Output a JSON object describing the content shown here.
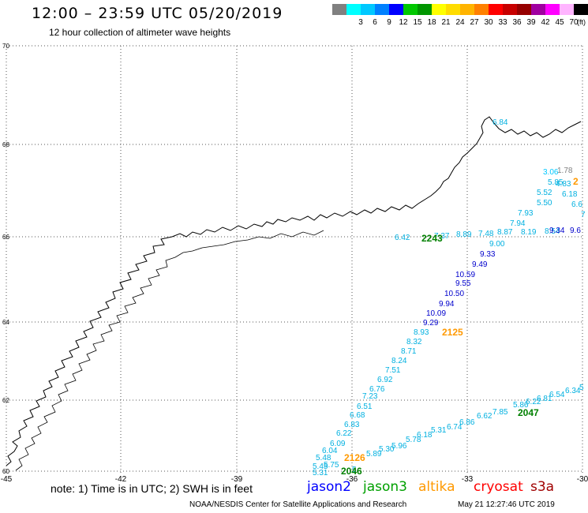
{
  "header": {
    "title": "12:00 – 23:59 UTC 05/20/2019",
    "subtitle": "12 hour collection of altimeter wave heights"
  },
  "legend": {
    "unit": "(ft)",
    "bins": [
      {
        "label": "",
        "color": "#808080"
      },
      {
        "label": "3",
        "color": "#00ffff"
      },
      {
        "label": "6",
        "color": "#00c8ff"
      },
      {
        "label": "9",
        "color": "#0080ff"
      },
      {
        "label": "12",
        "color": "#0000ff"
      },
      {
        "label": "15",
        "color": "#00c800"
      },
      {
        "label": "18",
        "color": "#009600"
      },
      {
        "label": "21",
        "color": "#ffff00"
      },
      {
        "label": "24",
        "color": "#ffdc00"
      },
      {
        "label": "27",
        "color": "#ffb400"
      },
      {
        "label": "30",
        "color": "#ff8000"
      },
      {
        "label": "33",
        "color": "#ff0000"
      },
      {
        "label": "36",
        "color": "#c80000"
      },
      {
        "label": "39",
        "color": "#960000"
      },
      {
        "label": "42",
        "color": "#a000a0"
      },
      {
        "label": "45",
        "color": "#ff00ff"
      },
      {
        "label": "70",
        "color": "#ffb4ff"
      },
      {
        "label": "",
        "color": "#000000"
      }
    ]
  },
  "map": {
    "lon_labels": [
      "-45",
      "-42",
      "-39",
      "-36",
      "-33",
      "-30"
    ],
    "lat_labels": [
      "70",
      "68",
      "66",
      "64",
      "62",
      "60"
    ],
    "time_labels": [
      {
        "text": "2243",
        "color": "#008000"
      },
      {
        "text": "2125",
        "color": "#ff9900"
      },
      {
        "text": "2047",
        "color": "#008000"
      },
      {
        "text": "2126",
        "color": "#ff9900"
      },
      {
        "text": "2046",
        "color": "#008000"
      },
      {
        "text": "2",
        "color": "#ff9900"
      }
    ],
    "swh_values": [
      {
        "text": "6.84",
        "color": "#00b0e0"
      },
      {
        "text": "3.06",
        "color": "#00c8ff"
      },
      {
        "text": "1.78",
        "color": "#808080"
      },
      {
        "text": "5.85",
        "color": "#00b0e0"
      },
      {
        "text": "4.83",
        "color": "#00b0e0"
      },
      {
        "text": "5.52",
        "color": "#00b0e0"
      },
      {
        "text": "6.18",
        "color": "#00b0e0"
      },
      {
        "text": "5.50",
        "color": "#00b0e0"
      },
      {
        "text": "6.6",
        "color": "#00b0e0"
      },
      {
        "text": "7.93",
        "color": "#00b0e0"
      },
      {
        "text": "7",
        "color": "#00b0e0"
      },
      {
        "text": "7.94",
        "color": "#00b0e0"
      },
      {
        "text": "6.42",
        "color": "#00b0e0"
      },
      {
        "text": "7.37",
        "color": "#00b0e0"
      },
      {
        "text": "8.89",
        "color": "#00b0e0"
      },
      {
        "text": "7.48",
        "color": "#00b0e0"
      },
      {
        "text": "8.87",
        "color": "#00b0e0"
      },
      {
        "text": "8.19",
        "color": "#00b0e0"
      },
      {
        "text": "8.54",
        "color": "#00b0e0"
      },
      {
        "text": "9.34",
        "color": "#0000cc"
      },
      {
        "text": "9.6",
        "color": "#0000cc"
      },
      {
        "text": "9.00",
        "color": "#00b0e0"
      },
      {
        "text": "9.33",
        "color": "#0000cc"
      },
      {
        "text": "9.49",
        "color": "#0000cc"
      },
      {
        "text": "10.59",
        "color": "#0000cc"
      },
      {
        "text": "9.55",
        "color": "#0000cc"
      },
      {
        "text": "10.50",
        "color": "#0000cc"
      },
      {
        "text": "9.94",
        "color": "#0000cc"
      },
      {
        "text": "10.09",
        "color": "#0000cc"
      },
      {
        "text": "9.29",
        "color": "#0000cc"
      },
      {
        "text": "8.93",
        "color": "#00b0e0"
      },
      {
        "text": "8.32",
        "color": "#00b0e0"
      },
      {
        "text": "8.71",
        "color": "#00b0e0"
      },
      {
        "text": "8.24",
        "color": "#00b0e0"
      },
      {
        "text": "7.51",
        "color": "#00b0e0"
      },
      {
        "text": "6.92",
        "color": "#00b0e0"
      },
      {
        "text": "6.76",
        "color": "#00b0e0"
      },
      {
        "text": "7.23",
        "color": "#00b0e0"
      },
      {
        "text": "6.51",
        "color": "#00b0e0"
      },
      {
        "text": "6.68",
        "color": "#00b0e0"
      },
      {
        "text": "6.83",
        "color": "#00b0e0"
      },
      {
        "text": "6.22",
        "color": "#00b0e0"
      },
      {
        "text": "6.09",
        "color": "#00b0e0"
      },
      {
        "text": "6.04",
        "color": "#00b0e0"
      },
      {
        "text": "5.48",
        "color": "#00b0e0"
      },
      {
        "text": "5.45",
        "color": "#00b0e0"
      },
      {
        "text": "5.75",
        "color": "#00b0e0"
      },
      {
        "text": "5.31",
        "color": "#00b0e0"
      },
      {
        "text": "5.",
        "color": "#00b0e0"
      },
      {
        "text": "5.30",
        "color": "#00b0e0"
      },
      {
        "text": "5.96",
        "color": "#00b0e0"
      },
      {
        "text": "5.78",
        "color": "#00b0e0"
      },
      {
        "text": "6.18",
        "color": "#00b0e0"
      },
      {
        "text": "5.31",
        "color": "#00b0e0"
      },
      {
        "text": "6.74",
        "color": "#00b0e0"
      },
      {
        "text": "6.86",
        "color": "#00b0e0"
      },
      {
        "text": "6.62",
        "color": "#00b0e0"
      },
      {
        "text": "7.85",
        "color": "#00b0e0"
      },
      {
        "text": "5.86",
        "color": "#00b0e0"
      },
      {
        "text": "6.22",
        "color": "#00b0e0"
      },
      {
        "text": "6.81",
        "color": "#00b0e0"
      },
      {
        "text": "6.54",
        "color": "#00b0e0"
      },
      {
        "text": "6.34",
        "color": "#00b0e0"
      },
      {
        "text": "5",
        "color": "#00b0e0"
      },
      {
        "text": "5.89",
        "color": "#00b0e0"
      }
    ]
  },
  "footer": {
    "note": "note: 1) Time is in UTC; 2) SWH is in feet",
    "satellites": [
      {
        "name": "jason2",
        "color": "#0000ff"
      },
      {
        "name": "jason3",
        "color": "#00a000"
      },
      {
        "name": "altika",
        "color": "#ff9900"
      },
      {
        "name": "cryosat",
        "color": "#ff0000"
      },
      {
        "name": "s3a",
        "color": "#a00000"
      }
    ],
    "credit": "NOAA/NESDIS Center for Satellite Applications and Research",
    "timestamp": "May 21 12:27:46 UTC 2019"
  }
}
